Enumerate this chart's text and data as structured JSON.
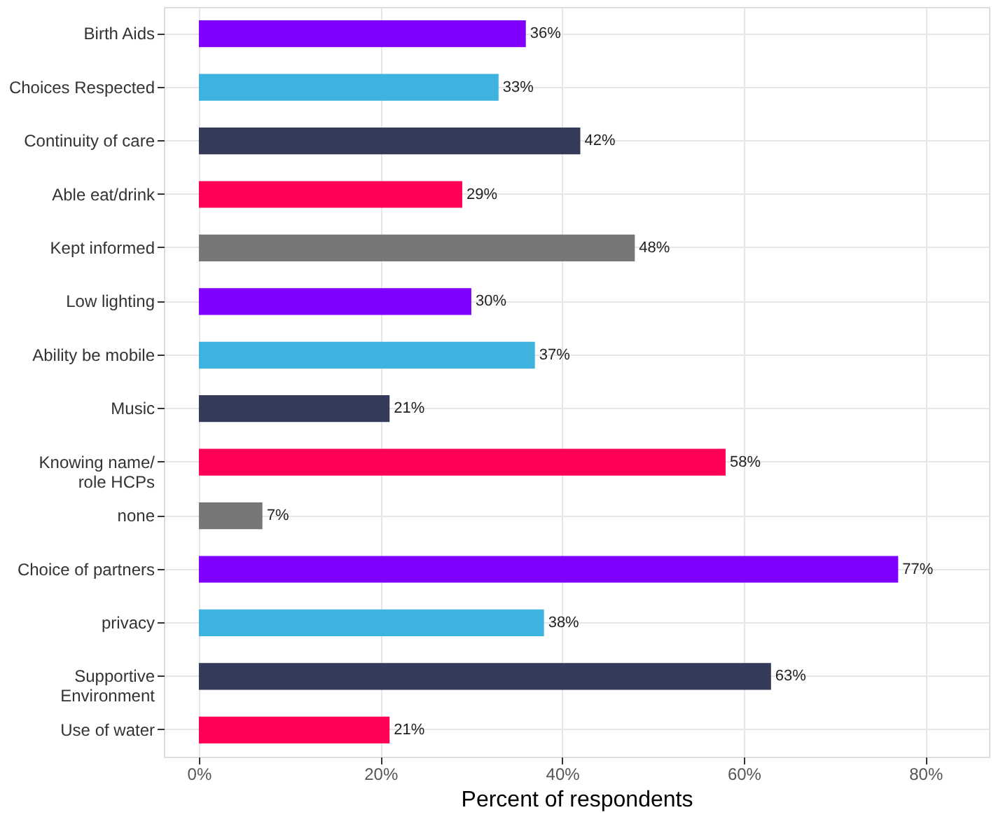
{
  "chart_data": {
    "type": "bar",
    "orientation": "horizontal",
    "categories": [
      "Birth Aids",
      "Choices Respected",
      "Continuity of care",
      "Able eat/drink",
      "Kept informed",
      "Low lighting",
      "Ability be mobile",
      "Music",
      "Knowing name/\nrole HCPs",
      "none",
      "Choice of partners",
      "privacy",
      "Supportive\nEnvironment",
      "Use of water"
    ],
    "values": [
      36,
      33,
      42,
      29,
      48,
      30,
      37,
      21,
      58,
      7,
      77,
      38,
      63,
      21
    ],
    "value_labels": [
      "36%",
      "33%",
      "42%",
      "29%",
      "48%",
      "30%",
      "37%",
      "21%",
      "58%",
      "7%",
      "77%",
      "38%",
      "63%",
      "21%"
    ],
    "colors": [
      "#7f00ff",
      "#3fb3e0",
      "#343a5a",
      "#ff0055",
      "#777777",
      "#7f00ff",
      "#3fb3e0",
      "#343a5a",
      "#ff0055",
      "#777777",
      "#7f00ff",
      "#3fb3e0",
      "#343a5a",
      "#ff0055"
    ],
    "xlabel": "Percent of respondents",
    "xlim": [
      -3.85,
      87
    ],
    "xticks": [
      {
        "value": 0,
        "label": "0%"
      },
      {
        "value": 20,
        "label": "20%"
      },
      {
        "value": 40,
        "label": "40%"
      },
      {
        "value": 60,
        "label": "60%"
      },
      {
        "value": 80,
        "label": "80%"
      }
    ],
    "grid": true,
    "legend": false
  }
}
